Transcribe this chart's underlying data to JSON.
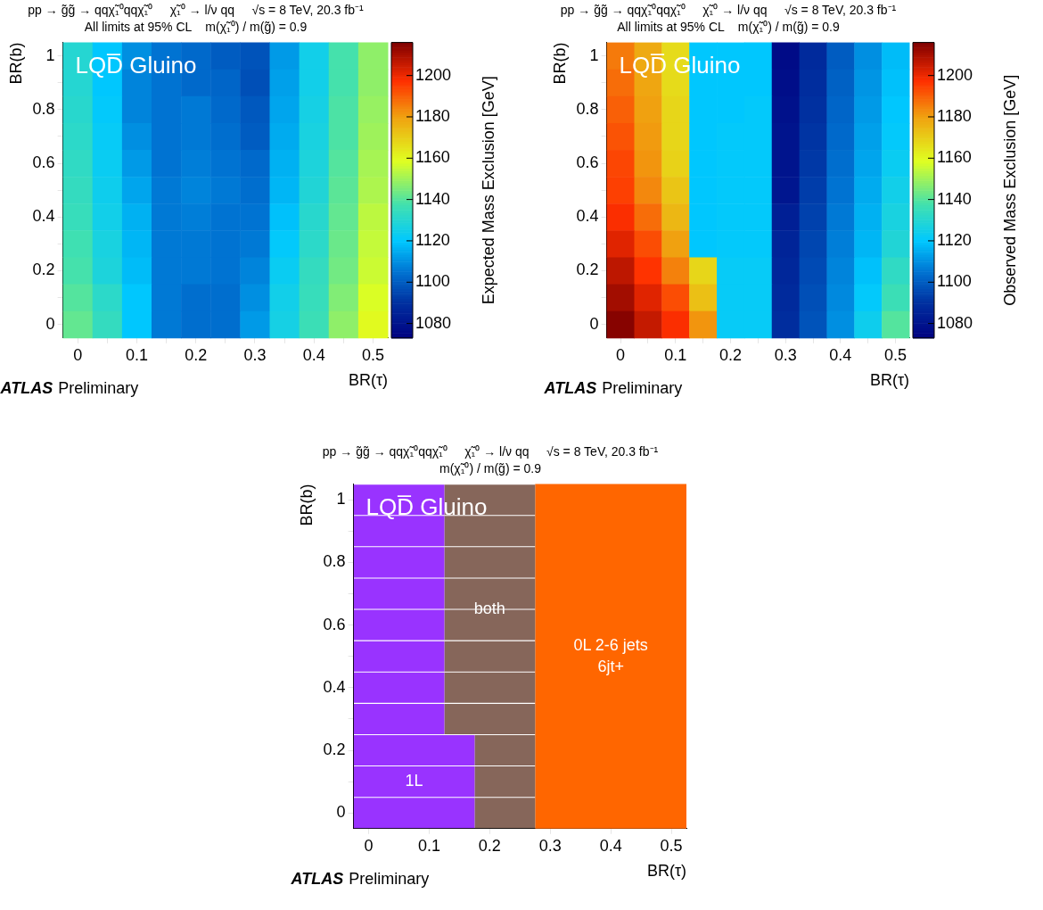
{
  "chart_data": [
    {
      "type": "heatmap",
      "title": "pp → g̃g̃ → qqχ̃₁⁰qqχ̃₁⁰     χ̃₁⁰ → l/ν qq     √s = 8 TeV, 20.3 fb⁻¹",
      "subtitle": "All limits at 95% CL    m(χ̃₁⁰) / m(g̃) = 0.9",
      "categories": [
        "0",
        null,
        "0.1",
        null,
        "0.2",
        null,
        "0.3",
        null,
        "0.4",
        null,
        "0.5"
      ],
      "y_categories": [
        "1",
        null,
        "0.8",
        null,
        "0.6",
        null,
        "0.4",
        null,
        "0.2",
        null,
        "0"
      ],
      "cells": [
        [
          1130,
          1120,
          1110,
          1105,
          1103,
          1100,
          1098,
          1112,
          1125,
          1138,
          1148
        ],
        [
          1130,
          1120,
          1108,
          1105,
          1103,
          1102,
          1097,
          1113,
          1125,
          1138,
          1148
        ],
        [
          1131,
          1121,
          1108,
          1105,
          1106,
          1103,
          1099,
          1114,
          1126,
          1139,
          1149
        ],
        [
          1132,
          1122,
          1110,
          1105,
          1106,
          1104,
          1100,
          1115,
          1127,
          1139,
          1150
        ],
        [
          1133,
          1123,
          1112,
          1105,
          1107,
          1105,
          1103,
          1116,
          1128,
          1140,
          1151
        ],
        [
          1134,
          1124,
          1114,
          1106,
          1108,
          1106,
          1104,
          1117,
          1129,
          1141,
          1152
        ],
        [
          1135,
          1125,
          1116,
          1106,
          1107,
          1105,
          1105,
          1119,
          1131,
          1142,
          1154
        ],
        [
          1137,
          1127,
          1117,
          1106,
          1106,
          1105,
          1106,
          1121,
          1132,
          1143,
          1155
        ],
        [
          1138,
          1128,
          1118,
          1106,
          1106,
          1105,
          1108,
          1123,
          1134,
          1144,
          1156
        ],
        [
          1140,
          1132,
          1120,
          1106,
          1104,
          1104,
          1110,
          1125,
          1135,
          1146,
          1158
        ],
        [
          1142,
          1134,
          1120,
          1106,
          1104,
          1104,
          1112,
          1126,
          1136,
          1148,
          1160
        ]
      ],
      "clim": [
        1073,
        1216
      ],
      "cticks": [
        1080,
        1100,
        1120,
        1140,
        1160,
        1180,
        1200
      ],
      "clabel": "Expected Mass Exclusion [GeV]",
      "xlabel": "BR(τ)",
      "ylabel": "BR(b)",
      "annotations": [
        "LQD̅ Gluino",
        "ATLAS",
        "Preliminary"
      ]
    },
    {
      "type": "heatmap",
      "title": "pp → g̃g̃ → qqχ̃₁⁰qqχ̃₁⁰     χ̃₁⁰ → l/ν qq     √s = 8 TeV, 20.3 fb⁻¹",
      "subtitle": "All limits at 95% CL    m(χ̃₁⁰) / m(g̃) = 0.9",
      "categories": [
        "0",
        null,
        "0.1",
        null,
        "0.2",
        null,
        "0.3",
        null,
        "0.4",
        null,
        "0.5"
      ],
      "y_categories": [
        "1",
        null,
        "0.8",
        null,
        "0.6",
        null,
        "0.4",
        null,
        "0.2",
        null,
        "0"
      ],
      "cells": [
        [
          1186,
          1178,
          1167,
          1120,
          1120,
          1120,
          1077,
          1088,
          1100,
          1110,
          1118
        ],
        [
          1188,
          1179,
          1167,
          1120,
          1120,
          1120,
          1078,
          1089,
          1101,
          1111,
          1119
        ],
        [
          1190,
          1180,
          1168,
          1120,
          1120,
          1121,
          1079,
          1090,
          1102,
          1112,
          1120
        ],
        [
          1192,
          1181,
          1168,
          1120,
          1121,
          1121,
          1080,
          1091,
          1103,
          1113,
          1121
        ],
        [
          1194,
          1182,
          1169,
          1120,
          1121,
          1121,
          1080,
          1092,
          1104,
          1114,
          1123
        ],
        [
          1195,
          1184,
          1172,
          1120,
          1121,
          1121,
          1081,
          1093,
          1105,
          1115,
          1125
        ],
        [
          1198,
          1188,
          1175,
          1120,
          1121,
          1121,
          1084,
          1094,
          1106,
          1116,
          1127
        ],
        [
          1202,
          1193,
          1180,
          1120,
          1121,
          1121,
          1086,
          1095,
          1107,
          1117,
          1129
        ],
        [
          1207,
          1197,
          1185,
          1168,
          1122,
          1122,
          1087,
          1096,
          1108,
          1119,
          1133
        ],
        [
          1211,
          1202,
          1193,
          1173,
          1122,
          1122,
          1088,
          1097,
          1109,
          1121,
          1136
        ],
        [
          1215,
          1206,
          1198,
          1182,
          1122,
          1122,
          1089,
          1098,
          1110,
          1124,
          1140
        ]
      ],
      "clim": [
        1073,
        1216
      ],
      "cticks": [
        1080,
        1100,
        1120,
        1140,
        1160,
        1180,
        1200
      ],
      "clabel": "Observed Mass Exclusion [GeV]",
      "xlabel": "BR(τ)",
      "ylabel": "BR(b)",
      "annotations": [
        "LQD̅ Gluino",
        "ATLAS",
        "Preliminary"
      ]
    },
    {
      "type": "bar",
      "orientation": "horizontal",
      "title": "pp → g̃g̃ → qqχ̃₁⁰qqχ̃₁⁰     χ̃₁⁰ → l/ν qq     √s = 8 TeV, 20.3 fb⁻¹",
      "subtitle": "m(χ̃₁⁰) / m(g̃) = 0.9",
      "categories": [
        "1",
        null,
        "0.8",
        null,
        "0.6",
        null,
        "0.4",
        null,
        "0.2",
        null,
        "0"
      ],
      "xlim": [
        -0.025,
        0.525
      ],
      "xticks": [
        0,
        0.1,
        0.2,
        0.3,
        0.4,
        0.5
      ],
      "series": [
        {
          "name": "1L",
          "color": "#9933ff",
          "base": [
            -0.025,
            -0.025,
            -0.025,
            -0.025,
            -0.025,
            -0.025,
            -0.025,
            -0.025,
            -0.025,
            -0.025,
            -0.025
          ],
          "values": [
            0.15,
            0.15,
            0.15,
            0.15,
            0.15,
            0.15,
            0.15,
            0.15,
            0.2,
            0.2,
            0.2
          ]
        },
        {
          "name": "both",
          "color": "#86665a",
          "base": [
            0.125,
            0.125,
            0.125,
            0.125,
            0.125,
            0.125,
            0.125,
            0.125,
            0.175,
            0.175,
            0.175
          ],
          "values": [
            0.15,
            0.15,
            0.15,
            0.15,
            0.15,
            0.15,
            0.15,
            0.15,
            0.1,
            0.1,
            0.1
          ]
        }
      ],
      "bands": [
        {
          "axis": "x",
          "from": 0.275,
          "to": 0.525,
          "label": "0L 2-6 jets\n6jt+",
          "color": "#ff6600"
        }
      ],
      "xlabel": "BR(τ)",
      "ylabel": "BR(b)",
      "annotations": [
        "LQD̅ Gluino",
        "ATLAS",
        "Preliminary"
      ]
    }
  ]
}
